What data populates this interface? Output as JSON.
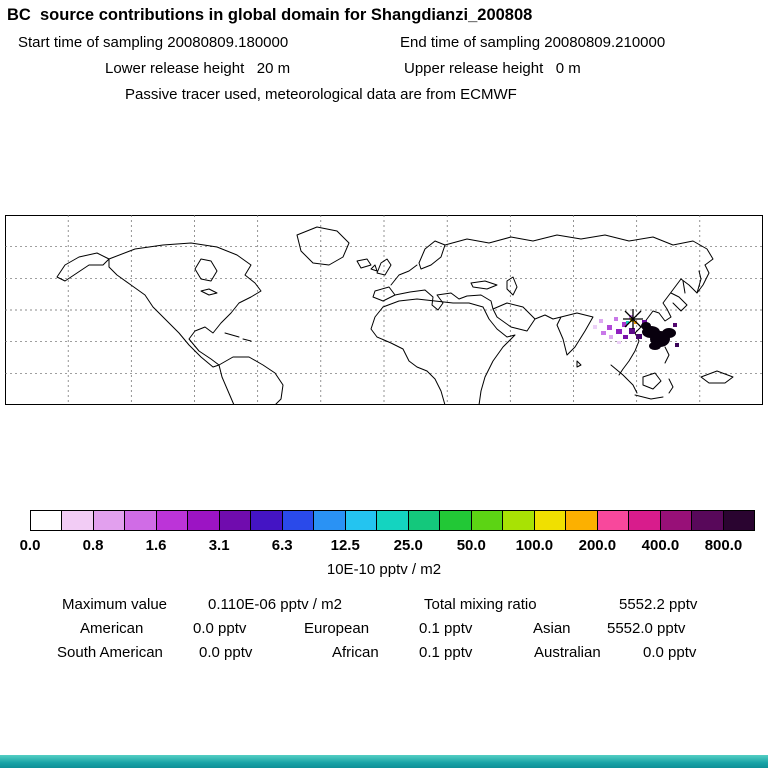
{
  "header": {
    "title": "BC  source contributions in global domain for Shangdianzi_200808",
    "start": "Start time of sampling 20080809.180000",
    "end": "End time of sampling 20080809.210000",
    "lower": "Lower release height   20 m",
    "upper": "Upper release height   0 m",
    "tracer": "Passive tracer used, meteorological data are from ECMWF"
  },
  "colorbar": {
    "units": "10E-10 pptv / m2",
    "tick_labels": [
      "0.0",
      "0.8",
      "1.6",
      "3.1",
      "6.3",
      "12.5",
      "25.0",
      "50.0",
      "100.0",
      "200.0",
      "400.0",
      "800.0"
    ],
    "colors": [
      "#ffffff",
      "#f2ccf5",
      "#e2a0ee",
      "#d06ce6",
      "#bc34d8",
      "#9c14c4",
      "#700cae",
      "#4414c4",
      "#2a4aea",
      "#2a92f4",
      "#24c4f0",
      "#14d4c0",
      "#14c87c",
      "#22c836",
      "#5cd414",
      "#a8e204",
      "#f0e000",
      "#fcb000",
      "#f8489c",
      "#d81c8c",
      "#981078",
      "#58085a",
      "#2a0430"
    ]
  },
  "stats": {
    "max_label": "Maximum value",
    "max_value": "0.110E-06 pptv / m2",
    "total_label": "Total mixing ratio",
    "total_value": "5552.2 pptv",
    "regions": [
      {
        "name": "American",
        "value": "0.0 pptv"
      },
      {
        "name": "European",
        "value": "0.1 pptv"
      },
      {
        "name": "Asian",
        "value": "5552.0 pptv"
      },
      {
        "name": "South American",
        "value": "0.0 pptv"
      },
      {
        "name": "African",
        "value": "0.1 pptv"
      },
      {
        "name": "Australian",
        "value": "0.0 pptv"
      }
    ]
  },
  "chart_data": {
    "type": "heatmap",
    "title": "BC source contributions in global domain for Shangdianzi_200808",
    "subtitle": [
      "Start time of sampling 20080809.180000",
      "End time of sampling 20080809.210000",
      "Lower release height 20 m",
      "Upper release height 0 m",
      "Passive tracer used, meteorological data are from ECMWF"
    ],
    "map_type": "equirectangular world map with dashed graticule, coastline outlines, plume over East Asia near Shangdianzi",
    "colorbar_levels": [
      0.0,
      0.8,
      1.6,
      3.1,
      6.3,
      12.5,
      25.0,
      50.0,
      100.0,
      200.0,
      400.0,
      800.0
    ],
    "colorbar_units": "10E-10 pptv / m2",
    "maximum_value": "0.110E-06 pptv / m2",
    "total_mixing_ratio_pptv": 5552.2,
    "regional_contributions_pptv": {
      "American": 0.0,
      "European": 0.1,
      "Asian": 5552.0,
      "South American": 0.0,
      "African": 0.1,
      "Australian": 0.0
    },
    "legend_position": "bottom horizontal colorbar",
    "grid": true
  }
}
